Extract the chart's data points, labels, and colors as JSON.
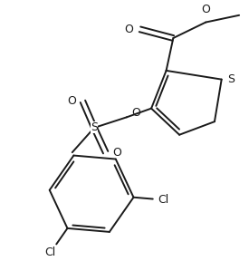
{
  "background_color": "#ffffff",
  "line_color": "#1a1a1a",
  "line_width": 1.4,
  "figsize": [
    2.75,
    2.88
  ],
  "dpi": 100,
  "xlim": [
    0,
    275
  ],
  "ylim": [
    0,
    288
  ]
}
